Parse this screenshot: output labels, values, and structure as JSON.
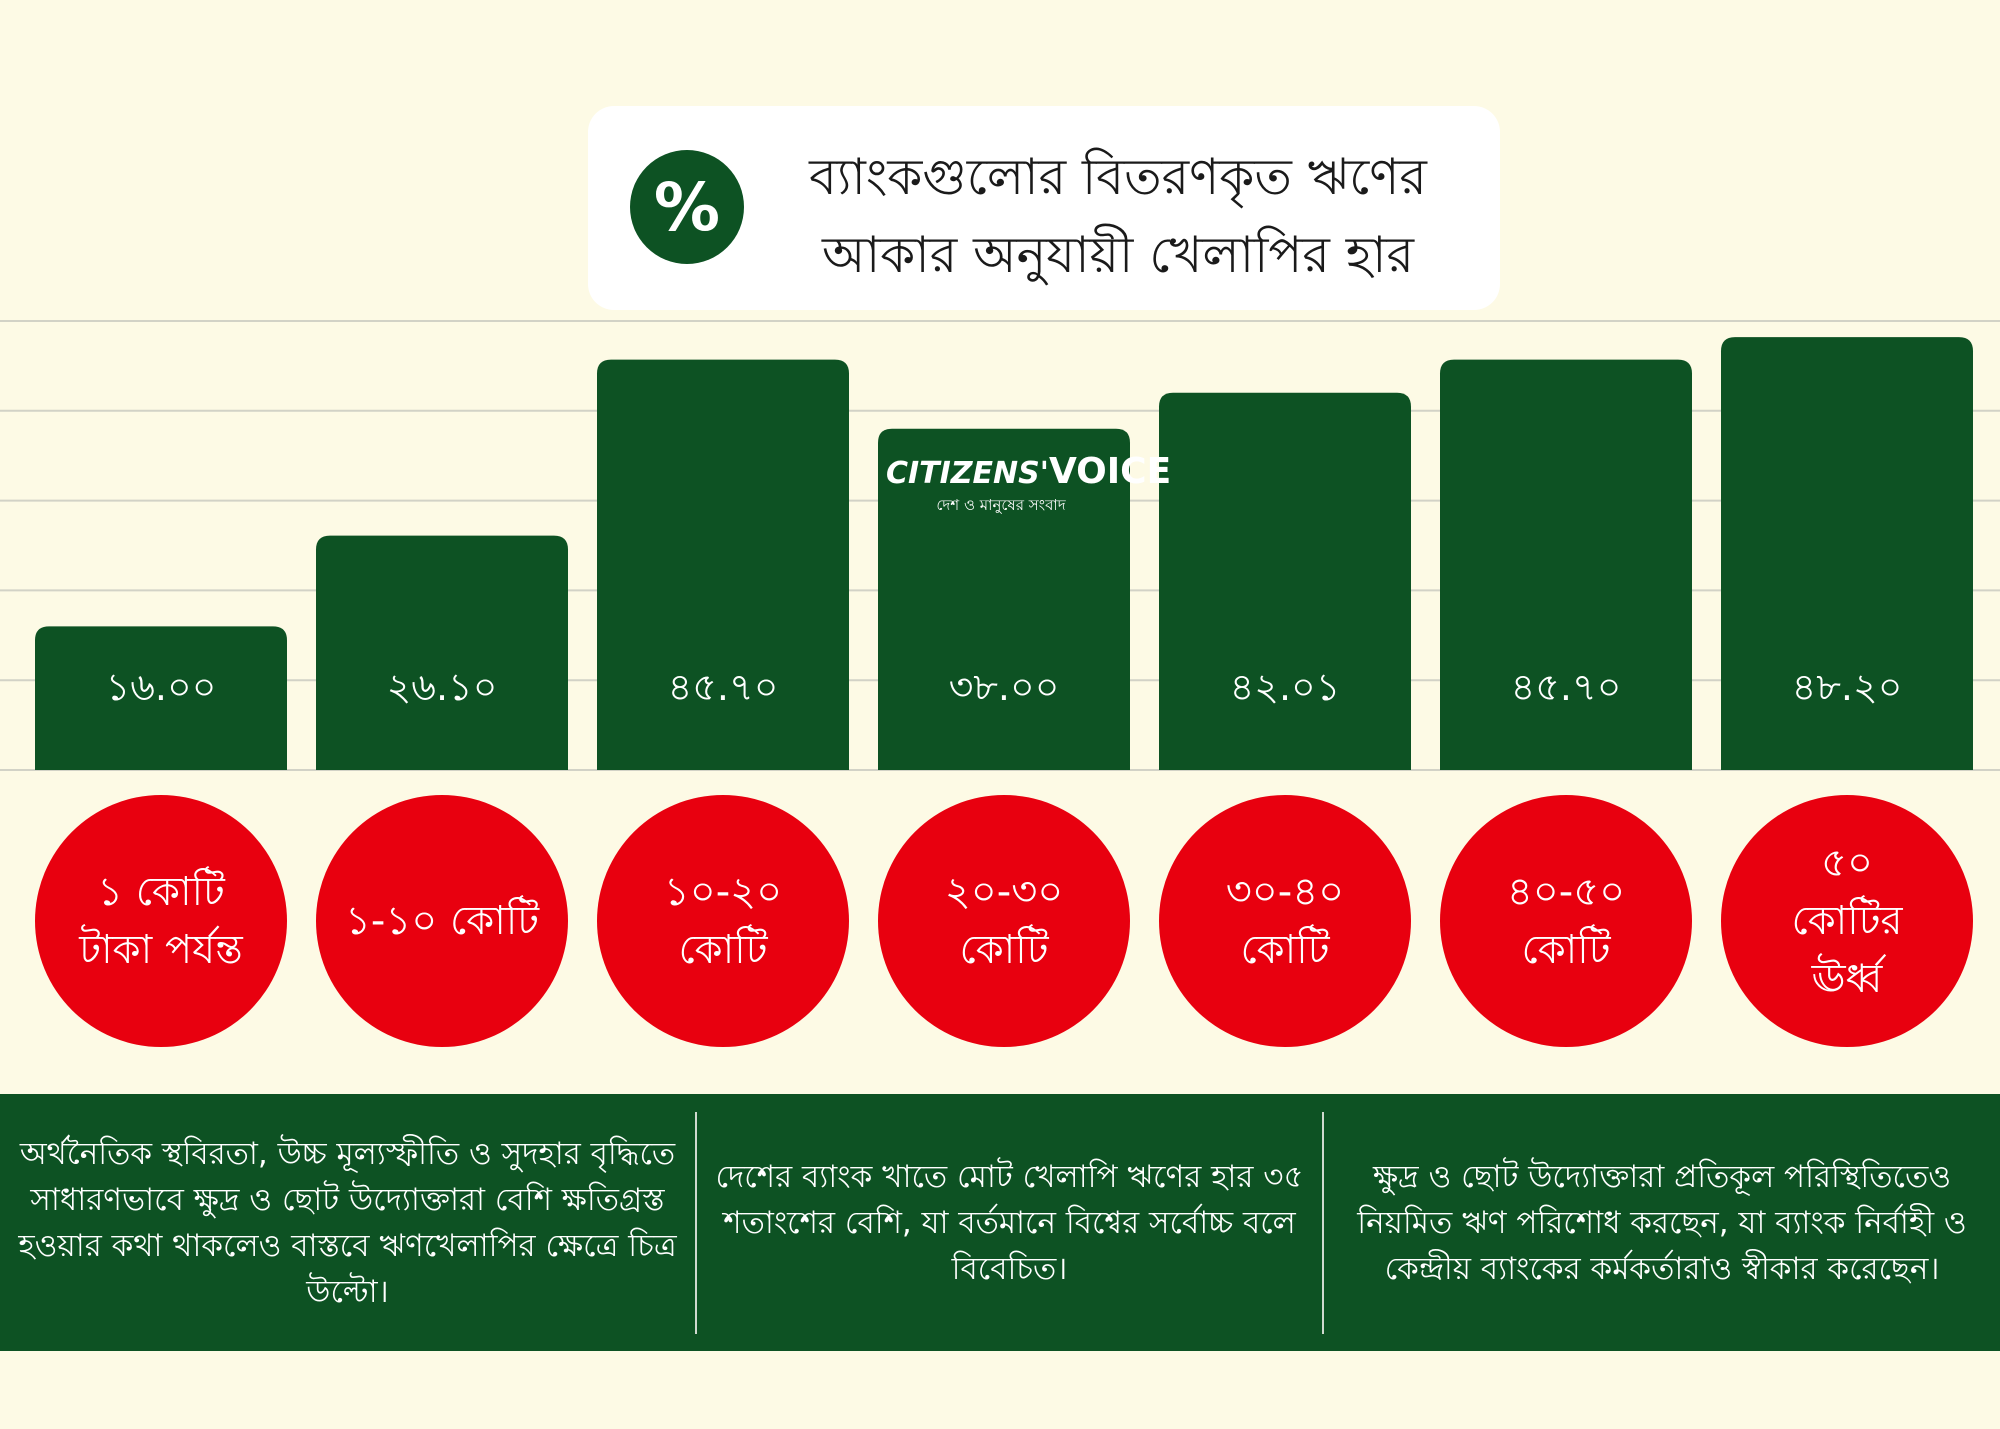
{
  "title": {
    "line1": "ব্যাংকগুলোর বিতরণকৃত ঋণের",
    "line2": "আকার অনুযায়ী খেলাপির হার",
    "icon_label": "%"
  },
  "watermark": {
    "name_part1": "CITIZENS'",
    "name_part2": "VOICE",
    "tagline": "দেশ ও মানুষের সংবাদ"
  },
  "colors": {
    "background": "#fdfae5",
    "bar": "#0d5223",
    "circle": "#e8000f",
    "grid": "#d2d2c6",
    "footer": "#0d5223"
  },
  "chart_data": {
    "type": "bar",
    "categories": [
      "১ কোটি টাকা পর্যন্ত",
      "১-১০ কোটি",
      "১০-২০ কোটি",
      "২০-৩০ কোটি",
      "৩০-৪০ কোটি",
      "৪০-৫০ কোটি",
      "৫০ কোটির ঊর্ধ্ব"
    ],
    "values": [
      16.0,
      26.1,
      45.7,
      38.0,
      42.01,
      45.7,
      48.2
    ],
    "value_labels": [
      "১৬.০০",
      "২৬.১০",
      "৪৫.৭০",
      "৩৮.০০",
      "৪২.০১",
      "৪৫.৭০",
      "৪৮.২০"
    ],
    "ylim": [
      0,
      50
    ],
    "grid": true,
    "title": "ব্যাংকগুলোর বিতরণকৃত ঋণের আকার অনুযায়ী খেলাপির হার",
    "xlabel": "",
    "ylabel": ""
  },
  "categories_display": [
    [
      "১ কোটি",
      "টাকা পর্যন্ত"
    ],
    [
      "১-১০ কোটি"
    ],
    [
      "১০-২০",
      "কোটি"
    ],
    [
      "২০-৩০",
      "কোটি"
    ],
    [
      "৩০-৪০",
      "কোটি"
    ],
    [
      "৪০-৫০",
      "কোটি"
    ],
    [
      "৫০",
      "কোটির",
      "ঊর্ধ্ব"
    ]
  ],
  "footer": {
    "col1": "অর্থনৈতিক স্থবিরতা, উচ্চ মূল্যস্ফীতি ও সুদহার বৃদ্ধিতে সাধারণভাবে ক্ষুদ্র ও ছোট উদ্যোক্তারা বেশি ক্ষতিগ্রস্ত হওয়ার কথা থাকলেও বাস্তবে ঋণখেলাপির ক্ষেত্রে চিত্র উল্টো।",
    "col2": "দেশের ব্যাংক খাতে মোট খেলাপি ঋণের হার ৩৫ শতাংশের বেশি, যা বর্তমানে বিশ্বের সর্বোচ্চ বলে বিবেচিত।",
    "col3": "ক্ষুদ্র ও ছোট উদ্যোক্তারা প্রতিকূল পরিস্থিতিতেও নিয়মিত ঋণ পরিশোধ করছেন, যা ব্যাংক নির্বাহী ও কেন্দ্রীয় ব্যাংকের কর্মকর্তারাও স্বীকার করেছেন।"
  }
}
